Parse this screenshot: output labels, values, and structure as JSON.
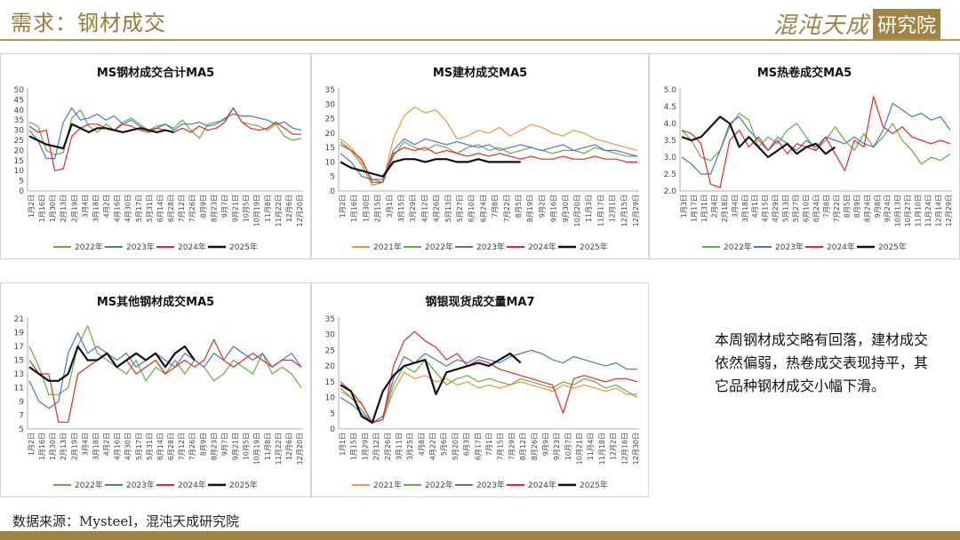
{
  "header": {
    "title": "需求：钢材成交",
    "brand_main": "混沌天成",
    "brand_box": "研究院"
  },
  "comment": "本周钢材成交略有回落，建材成交依然偏弱，热卷成交表现持平，其它品种钢材成交小幅下滑。",
  "source": "数据来源：Mysteel，混沌天成研究院",
  "series_colors": {
    "2021年": "#f0943e",
    "2022年": "#6aab3f",
    "2023年": "#4a76c4",
    "2024年": "#e6282a",
    "2025年": "#111111"
  },
  "chart_data": [
    {
      "type": "line",
      "title": "MS钢材成交合计MA5",
      "ylim": [
        0,
        50
      ],
      "yticks": [
        0,
        5,
        10,
        15,
        20,
        25,
        30,
        35,
        40,
        45,
        50
      ],
      "xticks": [
        "1月2日",
        "1月16日",
        "1月30日",
        "2月13日",
        "2月19日",
        "3月4日",
        "3月18日",
        "4月2日",
        "4月16日",
        "4月30日",
        "5月17日",
        "5月31日",
        "6月14日",
        "6月28日",
        "7月12日",
        "7月26日",
        "8月9日",
        "8月23日",
        "9月7日",
        "9月21日",
        "10月5日",
        "10月19日",
        "11月8日",
        "11月22日",
        "12月6日",
        "12月20日"
      ],
      "legend": [
        "2022年",
        "2023年",
        "2024年",
        "2025年"
      ],
      "series": [
        {
          "name": "2022年",
          "values": [
            34,
            32,
            20,
            18,
            19,
            36,
            40,
            32,
            29,
            33,
            30,
            34,
            36,
            33,
            30,
            32,
            33,
            31,
            35,
            30,
            26,
            33,
            34,
            35,
            41,
            34,
            33,
            32,
            30,
            33,
            27,
            25,
            26
          ]
        },
        {
          "name": "2023年",
          "values": [
            30,
            25,
            16,
            16,
            34,
            41,
            35,
            36,
            38,
            35,
            37,
            33,
            35,
            32,
            30,
            31,
            33,
            30,
            33,
            33,
            34,
            32,
            33,
            36,
            38,
            37,
            37,
            36,
            35,
            33,
            34,
            31,
            30
          ]
        },
        {
          "name": "2024年",
          "values": [
            32,
            29,
            30,
            10,
            11,
            27,
            31,
            33,
            33,
            31,
            30,
            33,
            32,
            30,
            29,
            31,
            30,
            29,
            31,
            29,
            32,
            30,
            31,
            34,
            41,
            34,
            31,
            30,
            31,
            34,
            31,
            28,
            28
          ]
        },
        {
          "name": "2025年",
          "values": [
            27,
            25,
            23,
            22,
            21,
            33,
            31,
            29,
            31,
            31,
            30,
            29,
            30,
            31,
            30,
            29,
            30,
            29
          ]
        }
      ]
    },
    {
      "type": "line",
      "title": "MS建材成交MA5",
      "ylim": [
        0,
        35
      ],
      "yticks": [
        0,
        5,
        10,
        15,
        20,
        25,
        30,
        35
      ],
      "xticks": [
        "1月2日",
        "1月16日",
        "1月30日",
        "2月15日",
        "3月1日",
        "3月15日",
        "3月29日",
        "4月12日",
        "4月26日",
        "5月13日",
        "5月27日",
        "6月10日",
        "6月24日",
        "7月8日",
        "7月22日",
        "8月5日",
        "8月19日",
        "9月2日",
        "9月16日",
        "9月30日",
        "10月20日",
        "11月3日",
        "11月17日",
        "12月1日",
        "12月15日",
        "12月29日"
      ],
      "legend": [
        "2021年",
        "2022年",
        "2023年",
        "2024年",
        "2025年"
      ],
      "series": [
        {
          "name": "2021年",
          "values": [
            18,
            15,
            10,
            4,
            3,
            18,
            26,
            29,
            27,
            28,
            24,
            18,
            19,
            21,
            20,
            22,
            19,
            21,
            23,
            22,
            20,
            19,
            21,
            20,
            18,
            17,
            16,
            15,
            14
          ]
        },
        {
          "name": "2022年",
          "values": [
            17,
            14,
            9,
            2,
            3,
            12,
            17,
            15,
            14,
            16,
            15,
            13,
            15,
            16,
            14,
            15,
            13,
            14,
            15,
            14,
            13,
            14,
            14,
            13,
            15,
            14,
            13,
            12,
            12
          ]
        },
        {
          "name": "2023年",
          "values": [
            13,
            10,
            5,
            4,
            4,
            14,
            18,
            16,
            18,
            17,
            16,
            17,
            16,
            15,
            16,
            14,
            15,
            16,
            15,
            14,
            15,
            16,
            14,
            15,
            16,
            14,
            14,
            13,
            12
          ]
        },
        {
          "name": "2024年",
          "values": [
            16,
            14,
            11,
            3,
            3,
            13,
            15,
            14,
            15,
            13,
            14,
            13,
            12,
            13,
            12,
            13,
            12,
            11,
            12,
            11,
            11,
            12,
            11,
            11,
            12,
            11,
            11,
            10,
            10
          ]
        },
        {
          "name": "2025年",
          "values": [
            10,
            8,
            7,
            6,
            5,
            10,
            11,
            11,
            10,
            11,
            11,
            10,
            10,
            11,
            10,
            10,
            10,
            10
          ]
        }
      ]
    },
    {
      "type": "line",
      "title": "MS热卷成交MA5",
      "ylim": [
        2.0,
        5.0
      ],
      "yticks": [
        2.0,
        2.5,
        3.0,
        3.5,
        4.0,
        4.5,
        5.0
      ],
      "xticks": [
        "1月3日",
        "1月17日",
        "1月31日",
        "2月4日",
        "2月18日",
        "3月4日",
        "3月18日",
        "4月1日",
        "4月15日",
        "4月29日",
        "5月13日",
        "5月27日",
        "6月10日",
        "6月24日",
        "7月8日",
        "7月22日",
        "8月5日",
        "8月9日",
        "8月24日",
        "9月8日",
        "9月24日",
        "10月13日",
        "10月27日",
        "11月10日",
        "11月24日",
        "12月14日",
        "12月29日"
      ],
      "legend": [
        "2022年",
        "2023年",
        "2024年",
        "2025年"
      ],
      "series": [
        {
          "name": "2022年",
          "values": [
            3.8,
            3.5,
            3.0,
            2.9,
            3.2,
            3.9,
            4.3,
            4.1,
            3.3,
            3.6,
            3.4,
            3.8,
            4.0,
            3.6,
            3.2,
            3.5,
            3.9,
            3.5,
            3.2,
            3.7,
            3.3,
            3.6,
            4.0,
            3.5,
            3.2,
            2.8,
            3.0,
            2.9,
            3.1
          ]
        },
        {
          "name": "2023年",
          "values": [
            3.0,
            2.8,
            2.5,
            2.5,
            3.2,
            4.0,
            4.2,
            3.8,
            3.5,
            3.2,
            3.6,
            3.4,
            3.2,
            3.5,
            3.3,
            3.6,
            3.5,
            3.4,
            3.6,
            3.4,
            3.3,
            3.8,
            4.6,
            4.4,
            4.2,
            4.3,
            4.1,
            4.2,
            3.8
          ]
        },
        {
          "name": "2024年",
          "values": [
            3.8,
            3.7,
            3.4,
            2.2,
            2.1,
            3.5,
            3.8,
            3.3,
            3.6,
            3.2,
            3.5,
            3.1,
            3.4,
            3.3,
            3.2,
            3.6,
            3.1,
            2.6,
            3.5,
            3.3,
            4.8,
            3.9,
            3.7,
            3.9,
            3.6,
            3.5,
            3.4,
            3.5,
            3.4
          ]
        },
        {
          "name": "2025年",
          "values": [
            3.6,
            3.5,
            3.6,
            3.9,
            4.2,
            4.0,
            3.3,
            3.6,
            3.3,
            3.0,
            3.2,
            3.4,
            3.1,
            3.3,
            3.4,
            3.1,
            3.3
          ]
        }
      ]
    },
    {
      "type": "line",
      "title": "MS其他钢材成交MA5",
      "ylim": [
        5,
        21
      ],
      "yticks": [
        5,
        7,
        9,
        11,
        13,
        15,
        17,
        19,
        21
      ],
      "xticks": [
        "1月2日",
        "1月16日",
        "1月30日",
        "2月13日",
        "2月19日",
        "3月4日",
        "3月18日",
        "4月2日",
        "4月16日",
        "4月30日",
        "5月17日",
        "5月31日",
        "6月14日",
        "6月28日",
        "7月12日",
        "7月26日",
        "8月9日",
        "8月23日",
        "9月7日",
        "9月21日",
        "10月5日",
        "10月19日",
        "11月8日",
        "11月22日",
        "12月6日",
        "12月20日"
      ],
      "legend": [
        "2022年",
        "2023年",
        "2024年",
        "2025年"
      ],
      "series": [
        {
          "name": "2022年",
          "values": [
            17,
            14,
            10,
            10,
            11,
            17,
            20,
            16,
            15,
            14,
            13,
            15,
            12,
            14,
            13,
            15,
            13,
            15,
            14,
            12,
            13,
            15,
            14,
            13,
            16,
            13,
            14,
            13,
            11
          ]
        },
        {
          "name": "2023年",
          "values": [
            12,
            9,
            8,
            9,
            16,
            19,
            16,
            17,
            16,
            15,
            16,
            14,
            15,
            16,
            15,
            14,
            16,
            15,
            14,
            16,
            15,
            17,
            16,
            15,
            16,
            14,
            15,
            16,
            14
          ]
        },
        {
          "name": "2024年",
          "values": [
            15,
            13,
            13,
            6,
            6,
            13,
            14,
            15,
            16,
            14,
            15,
            13,
            14,
            15,
            13,
            14,
            15,
            14,
            15,
            18,
            15,
            14,
            15,
            16,
            15,
            14,
            15,
            15,
            14
          ]
        },
        {
          "name": "2025年",
          "values": [
            14,
            13,
            12,
            12,
            13,
            17,
            15,
            15,
            16,
            14,
            15,
            16,
            15,
            16,
            14,
            16,
            17,
            15
          ]
        }
      ]
    },
    {
      "type": "line",
      "title": "钢银现货成交量MA7",
      "ylim": [
        0,
        35
      ],
      "yticks": [
        0,
        5,
        10,
        15,
        20,
        25,
        30,
        35
      ],
      "xticks": [
        "1月1日",
        "1月15日",
        "1月29日",
        "2月12日",
        "2月26日",
        "3月11日",
        "3月25日",
        "4月8日",
        "4月22日",
        "5月6日",
        "5月20日",
        "6月3日",
        "6月17日",
        "7月1日",
        "7月15日",
        "7月29日",
        "8月12日",
        "8月26日",
        "9月9日",
        "9月23日",
        "10月7日",
        "10月21日",
        "11月4日",
        "11月18日",
        "12月2日",
        "12月16日",
        "12月30日"
      ],
      "legend": [
        "2021年",
        "2022年",
        "2023年",
        "2024年",
        "2025年"
      ],
      "series": [
        {
          "name": "2021年",
          "values": [
            12,
            10,
            8,
            2,
            3,
            12,
            18,
            16,
            17,
            15,
            16,
            14,
            15,
            13,
            14,
            13,
            14,
            15,
            14,
            13,
            12,
            14,
            13,
            14,
            13,
            12,
            13,
            11,
            11
          ]
        },
        {
          "name": "2022年",
          "values": [
            13,
            10,
            6,
            2,
            3,
            14,
            20,
            18,
            22,
            18,
            14,
            16,
            17,
            15,
            16,
            15,
            14,
            16,
            15,
            14,
            13,
            15,
            14,
            16,
            15,
            13,
            14,
            12,
            10
          ]
        },
        {
          "name": "2023年",
          "values": [
            10,
            8,
            5,
            2,
            4,
            16,
            23,
            21,
            24,
            22,
            20,
            22,
            21,
            23,
            22,
            21,
            23,
            24,
            25,
            24,
            22,
            21,
            23,
            22,
            21,
            20,
            21,
            19,
            19
          ]
        },
        {
          "name": "2024年",
          "values": [
            15,
            12,
            8,
            2,
            3,
            20,
            28,
            31,
            28,
            26,
            22,
            24,
            20,
            22,
            21,
            19,
            18,
            17,
            16,
            15,
            14,
            5,
            16,
            17,
            16,
            15,
            16,
            16,
            15
          ]
        },
        {
          "name": "2025年",
          "values": [
            14,
            12,
            4,
            2,
            12,
            17,
            20,
            21,
            22,
            11,
            18,
            19,
            20,
            21,
            20,
            22,
            24,
            21
          ]
        }
      ]
    }
  ]
}
